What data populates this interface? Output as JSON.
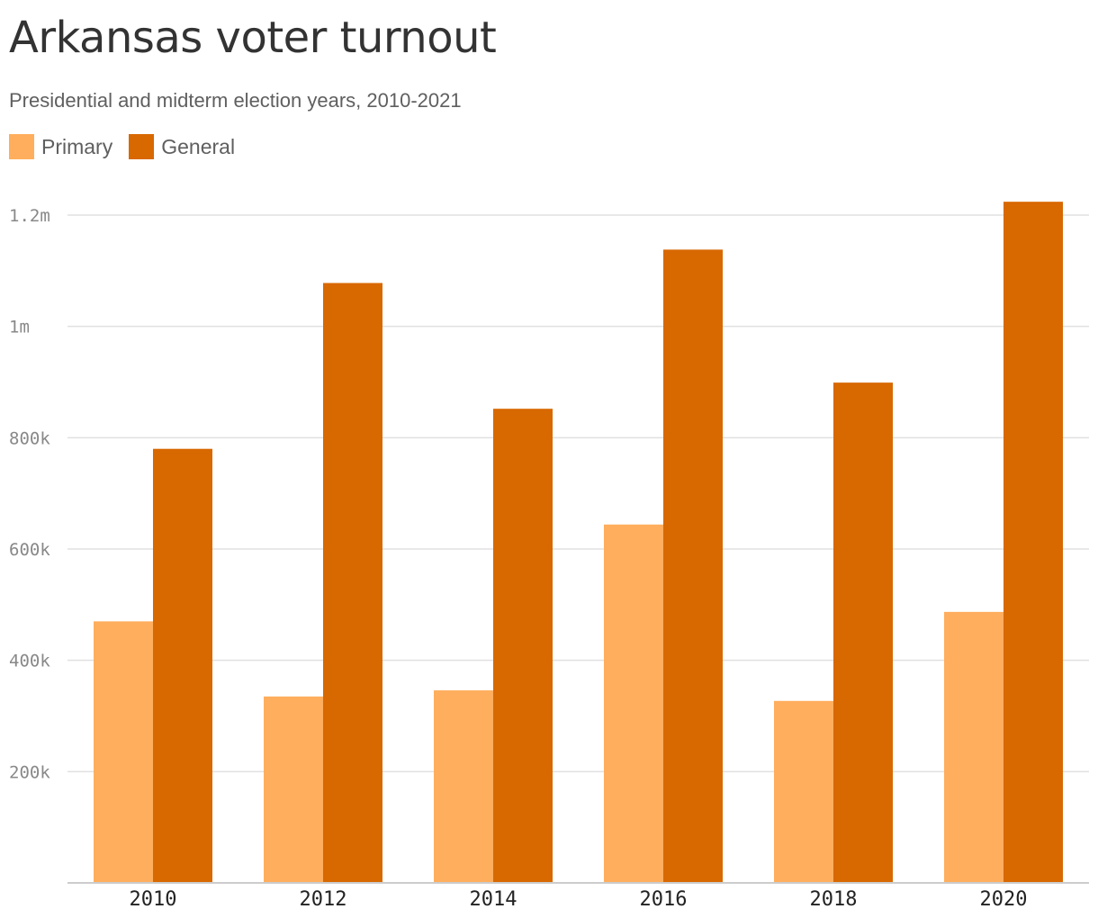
{
  "title": "Arkansas voter turnout",
  "subtitle": "Presidential and midterm election years, 2010-2021",
  "colors": {
    "primary": "#ffae5d",
    "general": "#d86800",
    "grid": "#e0e0e0",
    "axis": "#cccccc"
  },
  "chart_data": {
    "type": "bar",
    "title": "Arkansas voter turnout",
    "subtitle": "Presidential and midterm election years, 2010-2021",
    "categories": [
      "2010",
      "2012",
      "2014",
      "2016",
      "2018",
      "2020"
    ],
    "series": [
      {
        "name": "Primary",
        "color": "#ffae5d",
        "values": [
          470000,
          335000,
          346000,
          644000,
          327000,
          487000
        ]
      },
      {
        "name": "General",
        "color": "#d86800",
        "values": [
          780000,
          1078000,
          852000,
          1138000,
          899000,
          1224000
        ]
      }
    ],
    "yticks": [
      {
        "value": 200000,
        "label": "200k"
      },
      {
        "value": 400000,
        "label": "400k"
      },
      {
        "value": 600000,
        "label": "600k"
      },
      {
        "value": 800000,
        "label": "800k"
      },
      {
        "value": 1000000,
        "label": "1m"
      },
      {
        "value": 1200000,
        "label": "1.2m"
      }
    ],
    "ylim": [
      0,
      1200000
    ],
    "grid": true,
    "legend_position": "top-left"
  }
}
